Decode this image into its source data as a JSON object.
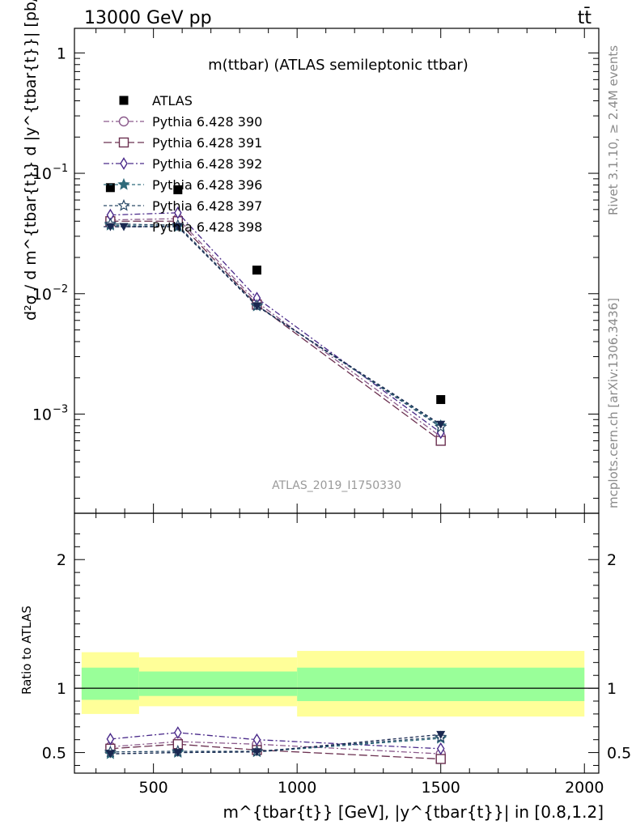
{
  "header": {
    "left": "13000 GeV pp",
    "right": "tt̄"
  },
  "side_text": {
    "rivet": "Rivet 3.1.10, ≥ 2.4M events",
    "mcplots": "mcplots.cern.ch [arXiv:1306.3436]"
  },
  "analysis_id": "ATLAS_2019_I1750330",
  "chart_data": [
    {
      "panel": "main",
      "type": "scatter",
      "title": "m(ttbar) (ATLAS semileptonic ttbar)",
      "ylabel": "d²σ / d m^{tbar{t}} d |y^{tbar{t}}| [pb/GeV]",
      "yscale": "log",
      "xlim": [
        225,
        2050
      ],
      "ylim": [
        0.00015,
        1.6
      ],
      "y_ticks": [
        "10^-3",
        "10^-2",
        "10^-1",
        "1"
      ],
      "legend_position": "top-left",
      "x": [
        350,
        585,
        860,
        1500
      ],
      "series": [
        {
          "name": "ATLAS",
          "marker": "filled-square",
          "color": "#000000",
          "values": [
            0.076,
            0.073,
            0.0157,
            0.00132
          ],
          "x_bins": [
            [
              250,
              450
            ],
            [
              450,
              720
            ],
            [
              720,
              1000
            ],
            [
              1000,
              2000
            ]
          ]
        },
        {
          "name": "Pythia 6.428 390",
          "marker": "circle",
          "color": "#8b5a8c",
          "dash": "7,3,2,3",
          "values": [
            0.041,
            0.042,
            0.0085,
            0.00065
          ]
        },
        {
          "name": "Pythia 6.428 391",
          "marker": "square",
          "color": "#6b3050",
          "dash": "10,4",
          "values": [
            0.04,
            0.04,
            0.0081,
            0.0006
          ]
        },
        {
          "name": "Pythia 6.428 392",
          "marker": "diamond",
          "color": "#4a2a8a",
          "dash": "7,3,2,3",
          "values": [
            0.045,
            0.047,
            0.0092,
            0.0007
          ]
        },
        {
          "name": "Pythia 6.428 396",
          "marker": "star",
          "color": "#2e6a7a",
          "dash": "4,3",
          "values": [
            0.037,
            0.036,
            0.0079,
            0.0008
          ]
        },
        {
          "name": "Pythia 6.428 397",
          "marker": "open-star",
          "color": "#2a4a68",
          "dash": "4,3",
          "values": [
            0.038,
            0.037,
            0.008,
            0.00078
          ]
        },
        {
          "name": "Pythia 6.428 398",
          "marker": "down-triangle",
          "color": "#1a2850",
          "dash": "4,3",
          "values": [
            0.036,
            0.036,
            0.0079,
            0.00082
          ]
        }
      ]
    },
    {
      "panel": "ratio",
      "type": "line",
      "ylabel": "Ratio to ATLAS",
      "xlabel": "m^{tbar{t}} [GeV], |y^{tbar{t}}| in [0.8,1.2]",
      "xlim": [
        225,
        2050
      ],
      "ylim": [
        0.34,
        2.36
      ],
      "x_ticks": [
        500,
        1000,
        1500,
        2000
      ],
      "y_ticks": [
        0.5,
        1,
        2
      ],
      "bands": [
        {
          "x0": 250,
          "x1": 450,
          "yellow": [
            0.8,
            1.28
          ],
          "green": [
            0.91,
            1.16
          ]
        },
        {
          "x0": 450,
          "x1": 1000,
          "yellow": [
            0.86,
            1.24
          ],
          "green": [
            0.94,
            1.13
          ]
        },
        {
          "x0": 1000,
          "x1": 2000,
          "yellow": [
            0.78,
            1.29
          ],
          "green": [
            0.9,
            1.16
          ]
        }
      ],
      "x": [
        350,
        585,
        860,
        1500
      ],
      "series": [
        {
          "name": "Pythia 6.428 390",
          "values": [
            0.545,
            0.585,
            0.565,
            0.49
          ]
        },
        {
          "name": "Pythia 6.428 391",
          "values": [
            0.53,
            0.565,
            0.52,
            0.45
          ]
        },
        {
          "name": "Pythia 6.428 392",
          "values": [
            0.605,
            0.655,
            0.6,
            0.53
          ]
        },
        {
          "name": "Pythia 6.428 396",
          "values": [
            0.49,
            0.5,
            0.505,
            0.61
          ]
        },
        {
          "name": "Pythia 6.428 397",
          "values": [
            0.505,
            0.51,
            0.51,
            0.62
          ]
        },
        {
          "name": "Pythia 6.428 398",
          "values": [
            0.49,
            0.5,
            0.505,
            0.64
          ]
        }
      ]
    }
  ]
}
